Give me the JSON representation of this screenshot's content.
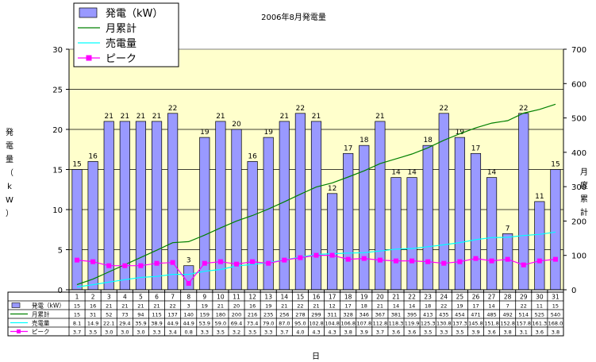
{
  "chart_data": {
    "type": "bar",
    "title": "2006年8月発電量",
    "xlabel": "日",
    "ylabel_left": "発電量（kW）",
    "ylabel_right": "月度累計",
    "ylim_left": [
      0,
      30
    ],
    "ylim_right": [
      0,
      700
    ],
    "yticks_left": [
      "0",
      "5",
      "10",
      "15",
      "20",
      "25",
      "30"
    ],
    "yticks_right": [
      "0",
      "100",
      "200",
      "300",
      "400",
      "500",
      "600",
      "700"
    ],
    "grid": true,
    "legend_position": "top-left",
    "categories": [
      "1",
      "2",
      "3",
      "4",
      "5",
      "6",
      "7",
      "8",
      "9",
      "10",
      "11",
      "12",
      "13",
      "14",
      "15",
      "16",
      "17",
      "18",
      "19",
      "20",
      "21",
      "22",
      "23",
      "24",
      "25",
      "26",
      "27",
      "28",
      "29",
      "30",
      "31"
    ],
    "series": [
      {
        "name": "発電（kW）",
        "type": "bar",
        "axis": "left",
        "color": "#9999ff",
        "values": [
          15,
          16,
          21,
          21,
          21,
          21,
          22,
          3,
          19,
          21,
          20,
          16,
          19,
          21,
          22,
          21,
          12,
          17,
          18,
          21,
          14,
          14,
          18,
          22,
          19,
          17,
          14,
          7,
          22,
          11,
          15
        ],
        "table_values": [
          "15",
          "16",
          "21",
          "21",
          "21",
          "21",
          "22",
          "3",
          "19",
          "21",
          "20",
          "16",
          "19",
          "21",
          "22",
          "21",
          "12",
          "17",
          "18",
          "21",
          "14",
          "14",
          "18",
          "22",
          "19",
          "17",
          "14",
          "7",
          "22",
          "11",
          "15"
        ]
      },
      {
        "name": "月累計",
        "type": "line",
        "axis": "right",
        "color": "#008000",
        "values": [
          15,
          31,
          52,
          73,
          94,
          115,
          137,
          140,
          159,
          180,
          200,
          216,
          235,
          256,
          278,
          299,
          311,
          328,
          346,
          367,
          381,
          395,
          413,
          435,
          454,
          471,
          485,
          492,
          514,
          525,
          540
        ],
        "table_values": [
          "15",
          "31",
          "52",
          "73",
          "94",
          "115",
          "137",
          "140",
          "159",
          "180",
          "200",
          "216",
          "235",
          "256",
          "278",
          "299",
          "311",
          "328",
          "346",
          "367",
          "381",
          "395",
          "413",
          "435",
          "454",
          "471",
          "485",
          "492",
          "514",
          "525",
          "540"
        ]
      },
      {
        "name": "売電量",
        "type": "line",
        "axis": "right",
        "color": "#00ffff",
        "values": [
          8.1,
          14.9,
          22.1,
          29.4,
          35.9,
          38.9,
          44.9,
          44.9,
          53.9,
          59.0,
          69.4,
          73.4,
          79.0,
          87.0,
          95.0,
          102.8,
          104.8,
          106.8,
          107.8,
          112.8,
          118.3,
          119.9,
          125.3,
          130.8,
          137.3,
          145.8,
          151.8,
          152.8,
          157.8,
          161.3,
          168.0
        ],
        "table_values": [
          "8.1",
          "14.9",
          "22.1",
          "29.4",
          "35.9",
          "38.9",
          "44.9",
          "44.9",
          "53.9",
          "59.0",
          "69.4",
          "73.4",
          "79.0",
          "87.0",
          "95.0",
          "102.8",
          "104.8",
          "106.8",
          "107.8",
          "112.8",
          "118.3",
          "119.9",
          "125.3",
          "130.8",
          "137.3",
          "145.8",
          "151.8",
          "152.8",
          "157.8",
          "161.3",
          "168.0"
        ]
      },
      {
        "name": "ピーク",
        "type": "line",
        "axis": "left",
        "color": "#ff00ff",
        "marker": "square",
        "values": [
          3.7,
          3.5,
          3.0,
          3.0,
          3.0,
          3.3,
          3.4,
          0.8,
          3.3,
          3.5,
          3.2,
          3.5,
          3.3,
          3.7,
          4.0,
          4.3,
          4.3,
          3.8,
          3.9,
          3.7,
          3.6,
          3.6,
          3.5,
          3.3,
          3.5,
          3.9,
          3.6,
          3.8,
          3.1,
          3.6,
          3.8
        ],
        "table_values": [
          "3.7",
          "3.5",
          "3.0",
          "3.0",
          "3.0",
          "3.3",
          "3.4",
          "0.8",
          "3.3",
          "3.5",
          "3.2",
          "3.5",
          "3.3",
          "3.7",
          "4.0",
          "4.3",
          "4.3",
          "3.8",
          "3.9",
          "3.7",
          "3.6",
          "3.6",
          "3.5",
          "3.3",
          "3.5",
          "3.9",
          "3.6",
          "3.8",
          "3.1",
          "3.6",
          "3.8"
        ]
      }
    ]
  }
}
